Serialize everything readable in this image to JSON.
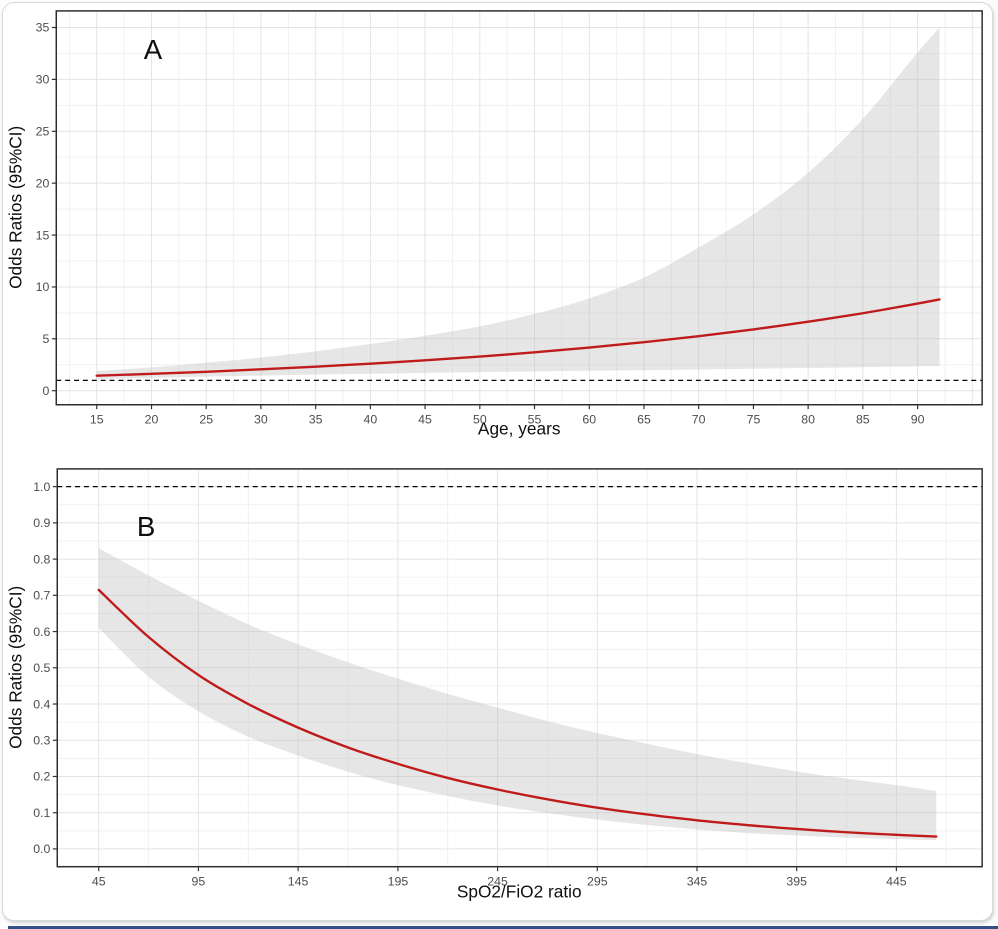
{
  "colors": {
    "line": "#c01b1b",
    "band": "#bdbdbd",
    "band_opacity": 0.38,
    "grid_major": "#e4e4e4",
    "grid_minor": "#f1f1f1",
    "panel_border": "#2d2d2d",
    "tick_mark": "#333333",
    "tick_label": "#4d4d4d",
    "axis_title": "#0f0f0f",
    "reference": "#000000",
    "bottom_strip": "#33508c"
  },
  "chart_data": [
    {
      "type": "line",
      "panel_label": "A",
      "xlabel": "Age, years",
      "ylabel": "Odds Ratios (95%CI)",
      "legend_position": "none",
      "grid": "major+minor",
      "xlim": [
        11.3,
        95.9
      ],
      "ylim": [
        -1.35,
        36.6
      ],
      "x_ticks": [
        15,
        20,
        25,
        30,
        35,
        40,
        45,
        50,
        55,
        60,
        65,
        70,
        75,
        80,
        85,
        90
      ],
      "x_tick_labels": [
        "15",
        "20",
        "25",
        "30",
        "35",
        "40",
        "45",
        "50",
        "55",
        "60",
        "65",
        "70",
        "75",
        "80",
        "85",
        "90"
      ],
      "y_ticks": [
        0,
        5,
        10,
        15,
        20,
        25,
        30,
        35
      ],
      "y_tick_labels": [
        "0",
        "5",
        "10",
        "15",
        "20",
        "25",
        "30",
        "35"
      ],
      "reference_line_y": 1.0,
      "x": [
        15,
        20,
        25,
        30,
        35,
        40,
        45,
        50,
        55,
        60,
        65,
        70,
        75,
        80,
        85,
        90,
        92
      ],
      "series": [
        {
          "name": "odds_ratio",
          "values": [
            1.45,
            1.63,
            1.83,
            2.06,
            2.32,
            2.61,
            2.93,
            3.29,
            3.7,
            4.16,
            4.68,
            5.26,
            5.91,
            6.65,
            7.47,
            8.4,
            8.8
          ]
        },
        {
          "name": "ci_upper",
          "values": [
            1.9,
            2.25,
            2.7,
            3.2,
            3.8,
            4.5,
            5.3,
            6.2,
            7.4,
            8.9,
            10.9,
            13.8,
            17.0,
            21.0,
            26.2,
            32.6,
            35.0
          ]
        },
        {
          "name": "ci_lower",
          "values": [
            1.12,
            1.24,
            1.36,
            1.46,
            1.56,
            1.64,
            1.72,
            1.79,
            1.86,
            1.92,
            1.98,
            2.05,
            2.12,
            2.19,
            2.27,
            2.35,
            2.38
          ]
        }
      ]
    },
    {
      "type": "line",
      "panel_label": "B",
      "xlabel": "SpO2/FiO2 ratio",
      "ylabel": "Odds Ratios (95%CI)",
      "legend_position": "none",
      "grid": "major+minor",
      "xlim": [
        24.2,
        488.0
      ],
      "ylim": [
        -0.049,
        1.049
      ],
      "x_ticks": [
        45,
        95,
        145,
        195,
        245,
        295,
        345,
        395,
        445
      ],
      "x_tick_labels": [
        "45",
        "95",
        "145",
        "195",
        "245",
        "295",
        "345",
        "395",
        "445"
      ],
      "y_ticks": [
        0.0,
        0.1,
        0.2,
        0.3,
        0.4,
        0.5,
        0.6,
        0.7,
        0.8,
        0.9,
        1.0
      ],
      "y_tick_labels": [
        "0.0",
        "0.1",
        "0.2",
        "0.3",
        "0.4",
        "0.5",
        "0.6",
        "0.7",
        "0.8",
        "0.9",
        "1.0"
      ],
      "reference_line_y": 1.0,
      "x": [
        45,
        70,
        95,
        120,
        145,
        170,
        195,
        220,
        245,
        270,
        295,
        320,
        345,
        370,
        395,
        420,
        445,
        465
      ],
      "series": [
        {
          "name": "odds_ratio",
          "values": [
            0.715,
            0.585,
            0.48,
            0.4,
            0.335,
            0.28,
            0.235,
            0.196,
            0.164,
            0.137,
            0.114,
            0.095,
            0.079,
            0.066,
            0.055,
            0.046,
            0.039,
            0.034
          ]
        },
        {
          "name": "ci_upper",
          "values": [
            0.83,
            0.755,
            0.685,
            0.62,
            0.565,
            0.515,
            0.47,
            0.428,
            0.39,
            0.353,
            0.32,
            0.29,
            0.262,
            0.237,
            0.214,
            0.194,
            0.176,
            0.16
          ]
        },
        {
          "name": "ci_lower",
          "values": [
            0.61,
            0.475,
            0.38,
            0.31,
            0.258,
            0.213,
            0.176,
            0.146,
            0.12,
            0.099,
            0.081,
            0.066,
            0.054,
            0.044,
            0.037,
            0.031,
            0.027,
            0.024
          ]
        }
      ]
    }
  ]
}
